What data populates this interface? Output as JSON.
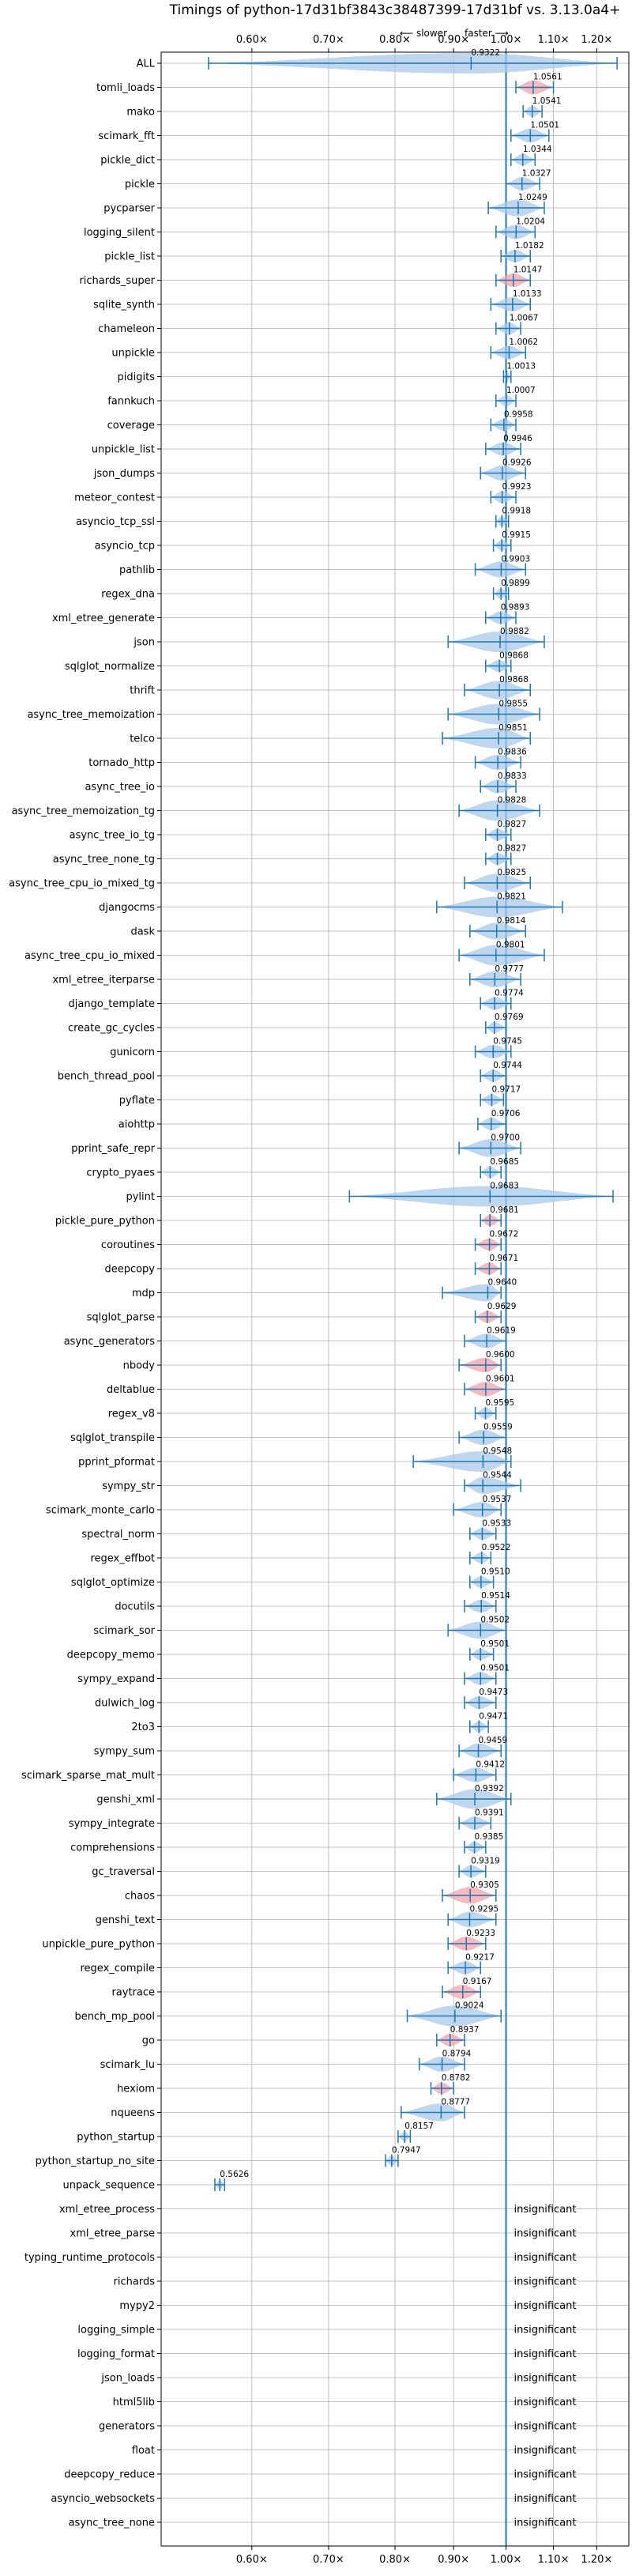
{
  "chart_data": {
    "type": "violin",
    "title": "Timings of python-17d31bf3843c38487399-17d31bf vs. 3.13.0a4+",
    "xscale": "log",
    "xlim": [
      0.5,
      1.28
    ],
    "xticks": [
      0.6,
      0.7,
      0.8,
      0.9,
      1.0,
      1.1,
      1.2
    ],
    "xtick_labels": [
      "0.60×",
      "0.70×",
      "0.80×",
      "0.90×",
      "1.00×",
      "1.10×",
      "1.20×"
    ],
    "direction_slower": "⟵ slower",
    "direction_faster": "faster ⟶",
    "insignificant_label": "insignificant",
    "grid": true,
    "colors": {
      "default": "#a9c8ea",
      "significant": "#f4a0a8",
      "line": "#1f77b4",
      "refline": "#1f77b4"
    },
    "benchmarks": [
      {
        "name": "ALL",
        "value": 0.9322,
        "min": 0.55,
        "max": 1.25,
        "sig": false
      },
      {
        "name": "tomli_loads",
        "value": 1.0561,
        "min": 1.02,
        "max": 1.1,
        "sig": true
      },
      {
        "name": "mako",
        "value": 1.0541,
        "min": 1.035,
        "max": 1.075,
        "sig": false
      },
      {
        "name": "scimark_fft",
        "value": 1.0501,
        "min": 1.01,
        "max": 1.09,
        "sig": false
      },
      {
        "name": "pickle_dict",
        "value": 1.0344,
        "min": 1.01,
        "max": 1.06,
        "sig": false
      },
      {
        "name": "pickle",
        "value": 1.0327,
        "min": 1.0,
        "max": 1.07,
        "sig": false
      },
      {
        "name": "pycparser",
        "value": 1.0249,
        "min": 0.965,
        "max": 1.08,
        "sig": false
      },
      {
        "name": "logging_silent",
        "value": 1.0204,
        "min": 0.98,
        "max": 1.06,
        "sig": false
      },
      {
        "name": "pickle_list",
        "value": 1.0182,
        "min": 0.99,
        "max": 1.05,
        "sig": false
      },
      {
        "name": "richards_super",
        "value": 1.0147,
        "min": 0.98,
        "max": 1.05,
        "sig": true
      },
      {
        "name": "sqlite_synth",
        "value": 1.0133,
        "min": 0.97,
        "max": 1.05,
        "sig": false
      },
      {
        "name": "chameleon",
        "value": 1.0067,
        "min": 0.98,
        "max": 1.03,
        "sig": false
      },
      {
        "name": "unpickle",
        "value": 1.0062,
        "min": 0.97,
        "max": 1.04,
        "sig": false
      },
      {
        "name": "pidigits",
        "value": 1.0013,
        "min": 0.995,
        "max": 1.01,
        "sig": false
      },
      {
        "name": "fannkuch",
        "value": 1.0007,
        "min": 0.98,
        "max": 1.02,
        "sig": false
      },
      {
        "name": "coverage",
        "value": 0.9958,
        "min": 0.97,
        "max": 1.02,
        "sig": false
      },
      {
        "name": "unpickle_list",
        "value": 0.9946,
        "min": 0.96,
        "max": 1.03,
        "sig": false
      },
      {
        "name": "json_dumps",
        "value": 0.9926,
        "min": 0.95,
        "max": 1.04,
        "sig": false
      },
      {
        "name": "meteor_contest",
        "value": 0.9923,
        "min": 0.97,
        "max": 1.02,
        "sig": false
      },
      {
        "name": "asyncio_tcp_ssl",
        "value": 0.9918,
        "min": 0.98,
        "max": 1.005,
        "sig": false
      },
      {
        "name": "asyncio_tcp",
        "value": 0.9915,
        "min": 0.975,
        "max": 1.01,
        "sig": false
      },
      {
        "name": "pathlib",
        "value": 0.9903,
        "min": 0.94,
        "max": 1.04,
        "sig": false
      },
      {
        "name": "regex_dna",
        "value": 0.9899,
        "min": 0.975,
        "max": 1.005,
        "sig": false
      },
      {
        "name": "xml_etree_generate",
        "value": 0.9893,
        "min": 0.96,
        "max": 1.02,
        "sig": false
      },
      {
        "name": "json",
        "value": 0.9882,
        "min": 0.89,
        "max": 1.08,
        "sig": false
      },
      {
        "name": "sqlglot_normalize",
        "value": 0.9868,
        "min": 0.96,
        "max": 1.01,
        "sig": false
      },
      {
        "name": "thrift",
        "value": 0.9868,
        "min": 0.92,
        "max": 1.05,
        "sig": false
      },
      {
        "name": "async_tree_memoization",
        "value": 0.9855,
        "min": 0.89,
        "max": 1.07,
        "sig": false
      },
      {
        "name": "telco",
        "value": 0.9851,
        "min": 0.88,
        "max": 1.05,
        "sig": false
      },
      {
        "name": "tornado_http",
        "value": 0.9836,
        "min": 0.94,
        "max": 1.03,
        "sig": false
      },
      {
        "name": "async_tree_io",
        "value": 0.9833,
        "min": 0.95,
        "max": 1.02,
        "sig": false
      },
      {
        "name": "async_tree_memoization_tg",
        "value": 0.9828,
        "min": 0.91,
        "max": 1.07,
        "sig": false
      },
      {
        "name": "async_tree_io_tg",
        "value": 0.9827,
        "min": 0.96,
        "max": 1.01,
        "sig": false
      },
      {
        "name": "async_tree_none_tg",
        "value": 0.9827,
        "min": 0.96,
        "max": 1.01,
        "sig": false
      },
      {
        "name": "async_tree_cpu_io_mixed_tg",
        "value": 0.9825,
        "min": 0.92,
        "max": 1.05,
        "sig": false
      },
      {
        "name": "djangocms",
        "value": 0.9821,
        "min": 0.87,
        "max": 1.12,
        "sig": false
      },
      {
        "name": "dask",
        "value": 0.9814,
        "min": 0.93,
        "max": 1.04,
        "sig": false
      },
      {
        "name": "async_tree_cpu_io_mixed",
        "value": 0.9801,
        "min": 0.91,
        "max": 1.08,
        "sig": false
      },
      {
        "name": "xml_etree_iterparse",
        "value": 0.9777,
        "min": 0.93,
        "max": 1.03,
        "sig": false
      },
      {
        "name": "django_template",
        "value": 0.9774,
        "min": 0.95,
        "max": 1.01,
        "sig": false
      },
      {
        "name": "create_gc_cycles",
        "value": 0.9769,
        "min": 0.96,
        "max": 1.0,
        "sig": false
      },
      {
        "name": "gunicorn",
        "value": 0.9745,
        "min": 0.94,
        "max": 1.01,
        "sig": false
      },
      {
        "name": "bench_thread_pool",
        "value": 0.9744,
        "min": 0.95,
        "max": 1.0,
        "sig": false
      },
      {
        "name": "pyflate",
        "value": 0.9717,
        "min": 0.95,
        "max": 0.995,
        "sig": false
      },
      {
        "name": "aiohttp",
        "value": 0.9706,
        "min": 0.945,
        "max": 1.0,
        "sig": false
      },
      {
        "name": "pprint_safe_repr",
        "value": 0.97,
        "min": 0.91,
        "max": 1.03,
        "sig": false
      },
      {
        "name": "crypto_pyaes",
        "value": 0.9685,
        "min": 0.95,
        "max": 0.99,
        "sig": false
      },
      {
        "name": "pylint",
        "value": 0.9683,
        "min": 0.73,
        "max": 1.24,
        "sig": false
      },
      {
        "name": "pickle_pure_python",
        "value": 0.9681,
        "min": 0.95,
        "max": 0.99,
        "sig": true
      },
      {
        "name": "coroutines",
        "value": 0.9672,
        "min": 0.94,
        "max": 0.99,
        "sig": true
      },
      {
        "name": "deepcopy",
        "value": 0.9671,
        "min": 0.94,
        "max": 0.99,
        "sig": true
      },
      {
        "name": "mdp",
        "value": 0.964,
        "min": 0.88,
        "max": 0.99,
        "sig": false
      },
      {
        "name": "sqlglot_parse",
        "value": 0.9629,
        "min": 0.94,
        "max": 0.99,
        "sig": true
      },
      {
        "name": "async_generators",
        "value": 0.9619,
        "min": 0.92,
        "max": 1.0,
        "sig": false
      },
      {
        "name": "nbody",
        "value": 0.96,
        "min": 0.91,
        "max": 0.99,
        "sig": true
      },
      {
        "name": "deltablue",
        "value": 0.9601,
        "min": 0.92,
        "max": 1.0,
        "sig": true
      },
      {
        "name": "regex_v8",
        "value": 0.9595,
        "min": 0.94,
        "max": 0.98,
        "sig": false
      },
      {
        "name": "sqlglot_transpile",
        "value": 0.9559,
        "min": 0.91,
        "max": 1.0,
        "sig": false
      },
      {
        "name": "pprint_pformat",
        "value": 0.9548,
        "min": 0.83,
        "max": 1.01,
        "sig": false
      },
      {
        "name": "sympy_str",
        "value": 0.9544,
        "min": 0.92,
        "max": 1.03,
        "sig": false
      },
      {
        "name": "scimark_monte_carlo",
        "value": 0.9537,
        "min": 0.9,
        "max": 0.99,
        "sig": false
      },
      {
        "name": "spectral_norm",
        "value": 0.9533,
        "min": 0.93,
        "max": 0.98,
        "sig": false
      },
      {
        "name": "regex_effbot",
        "value": 0.9522,
        "min": 0.93,
        "max": 0.97,
        "sig": false
      },
      {
        "name": "sqlglot_optimize",
        "value": 0.951,
        "min": 0.93,
        "max": 0.975,
        "sig": false
      },
      {
        "name": "docutils",
        "value": 0.9514,
        "min": 0.92,
        "max": 0.98,
        "sig": false
      },
      {
        "name": "scimark_sor",
        "value": 0.9502,
        "min": 0.89,
        "max": 1.0,
        "sig": false
      },
      {
        "name": "deepcopy_memo",
        "value": 0.9501,
        "min": 0.93,
        "max": 0.975,
        "sig": false
      },
      {
        "name": "sympy_expand",
        "value": 0.9501,
        "min": 0.92,
        "max": 0.98,
        "sig": false
      },
      {
        "name": "dulwich_log",
        "value": 0.9473,
        "min": 0.92,
        "max": 0.98,
        "sig": false
      },
      {
        "name": "2to3",
        "value": 0.9471,
        "min": 0.93,
        "max": 0.965,
        "sig": false
      },
      {
        "name": "sympy_sum",
        "value": 0.9459,
        "min": 0.91,
        "max": 0.99,
        "sig": false
      },
      {
        "name": "scimark_sparse_mat_mult",
        "value": 0.9412,
        "min": 0.9,
        "max": 0.98,
        "sig": false
      },
      {
        "name": "genshi_xml",
        "value": 0.9392,
        "min": 0.87,
        "max": 1.01,
        "sig": false
      },
      {
        "name": "sympy_integrate",
        "value": 0.9391,
        "min": 0.91,
        "max": 0.97,
        "sig": false
      },
      {
        "name": "comprehensions",
        "value": 0.9385,
        "min": 0.92,
        "max": 0.96,
        "sig": false
      },
      {
        "name": "gc_traversal",
        "value": 0.9319,
        "min": 0.91,
        "max": 0.96,
        "sig": false
      },
      {
        "name": "chaos",
        "value": 0.9305,
        "min": 0.88,
        "max": 0.98,
        "sig": true
      },
      {
        "name": "genshi_text",
        "value": 0.9295,
        "min": 0.89,
        "max": 0.98,
        "sig": false
      },
      {
        "name": "unpickle_pure_python",
        "value": 0.9233,
        "min": 0.89,
        "max": 0.96,
        "sig": true
      },
      {
        "name": "regex_compile",
        "value": 0.9217,
        "min": 0.89,
        "max": 0.95,
        "sig": false
      },
      {
        "name": "raytrace",
        "value": 0.9167,
        "min": 0.88,
        "max": 0.95,
        "sig": true
      },
      {
        "name": "bench_mp_pool",
        "value": 0.9024,
        "min": 0.82,
        "max": 0.99,
        "sig": false
      },
      {
        "name": "go",
        "value": 0.8937,
        "min": 0.87,
        "max": 0.92,
        "sig": true
      },
      {
        "name": "scimark_lu",
        "value": 0.8794,
        "min": 0.84,
        "max": 0.92,
        "sig": false
      },
      {
        "name": "hexiom",
        "value": 0.8782,
        "min": 0.86,
        "max": 0.9,
        "sig": true
      },
      {
        "name": "nqueens",
        "value": 0.8777,
        "min": 0.81,
        "max": 0.92,
        "sig": false
      },
      {
        "name": "python_startup",
        "value": 0.8157,
        "min": 0.805,
        "max": 0.825,
        "sig": false
      },
      {
        "name": "python_startup_no_site",
        "value": 0.7947,
        "min": 0.785,
        "max": 0.805,
        "sig": false
      },
      {
        "name": "unpack_sequence",
        "value": 0.5626,
        "min": 0.557,
        "max": 0.568,
        "sig": false
      },
      {
        "name": "xml_etree_process",
        "value": null,
        "sig": false
      },
      {
        "name": "xml_etree_parse",
        "value": null,
        "sig": false
      },
      {
        "name": "typing_runtime_protocols",
        "value": null,
        "sig": false
      },
      {
        "name": "richards",
        "value": null,
        "sig": false
      },
      {
        "name": "mypy2",
        "value": null,
        "sig": false
      },
      {
        "name": "logging_simple",
        "value": null,
        "sig": false
      },
      {
        "name": "logging_format",
        "value": null,
        "sig": false
      },
      {
        "name": "json_loads",
        "value": null,
        "sig": false
      },
      {
        "name": "html5lib",
        "value": null,
        "sig": false
      },
      {
        "name": "generators",
        "value": null,
        "sig": false
      },
      {
        "name": "float",
        "value": null,
        "sig": false
      },
      {
        "name": "deepcopy_reduce",
        "value": null,
        "sig": false
      },
      {
        "name": "asyncio_websockets",
        "value": null,
        "sig": false
      },
      {
        "name": "async_tree_none",
        "value": null,
        "sig": false
      }
    ]
  }
}
